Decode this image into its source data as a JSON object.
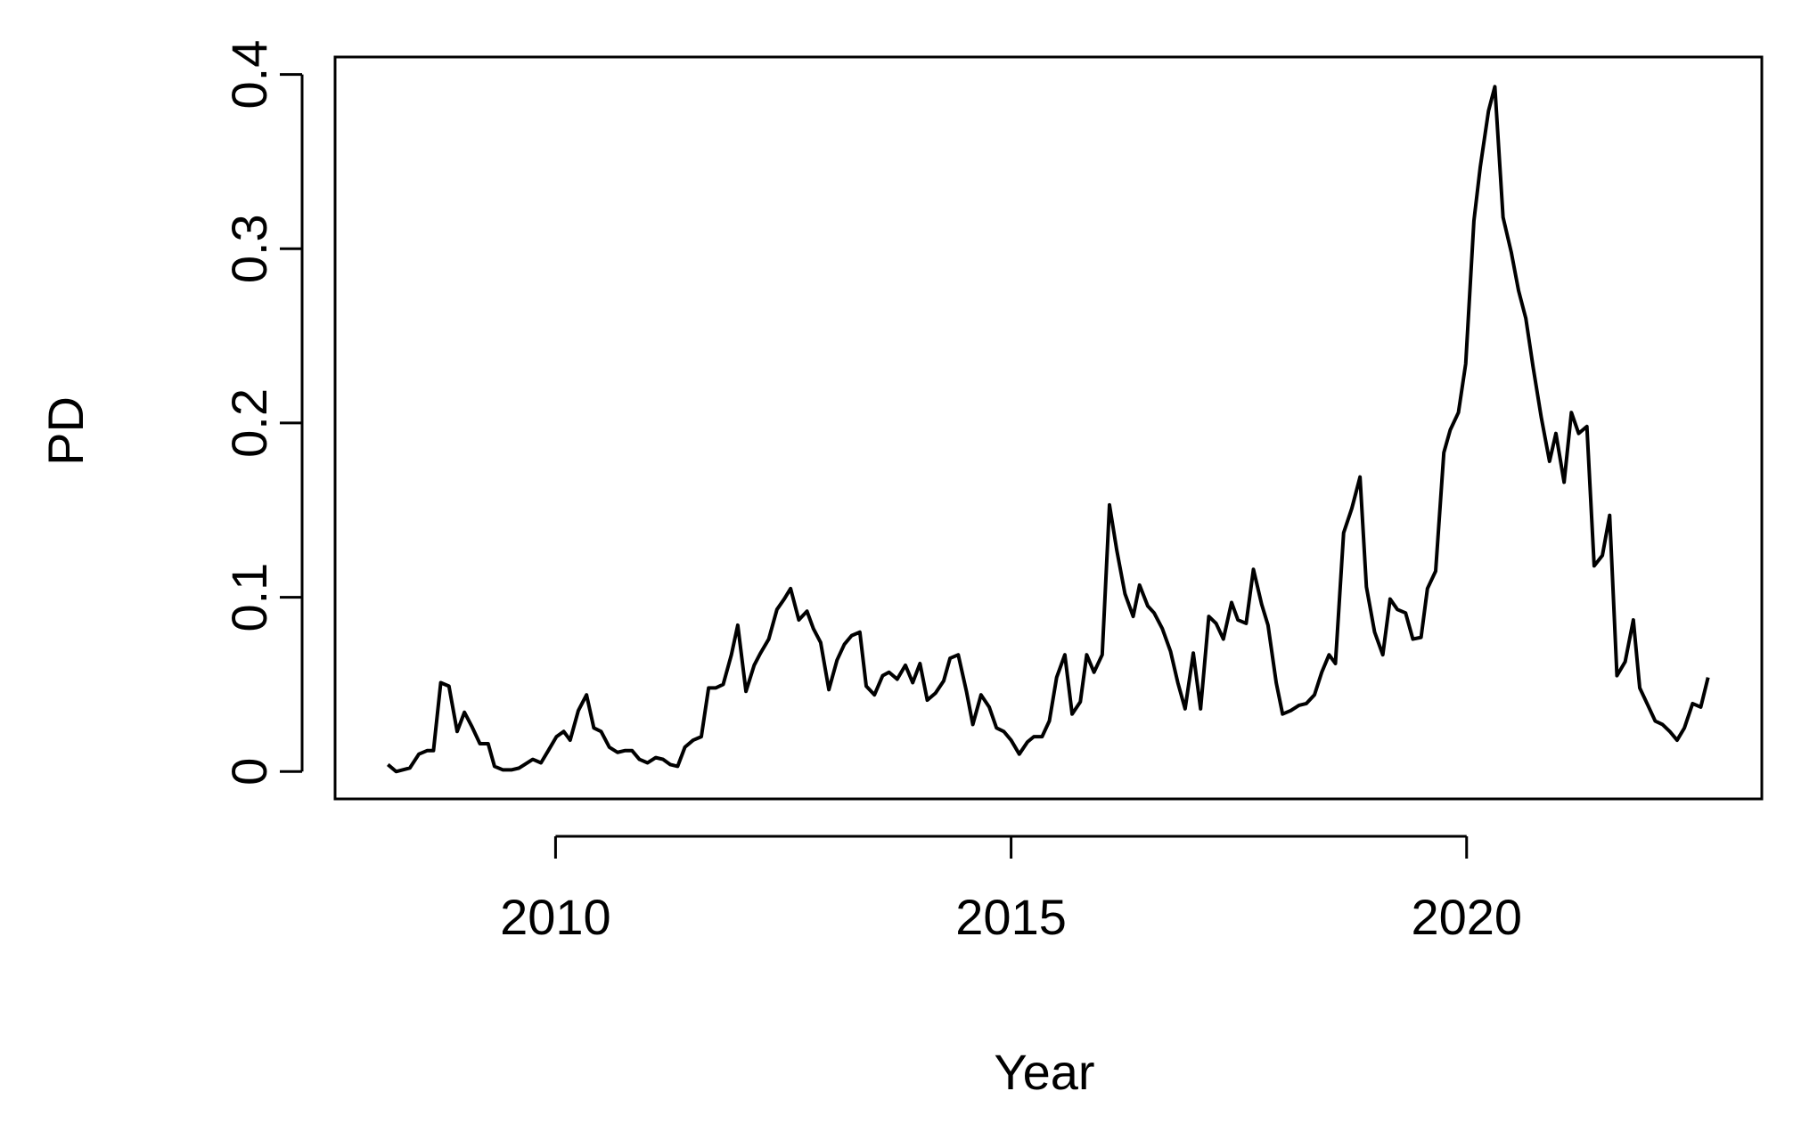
{
  "chart_data": {
    "type": "line",
    "x_label": "Year",
    "y_label": "PD",
    "color": "#000000",
    "x": [
      2008.16,
      2008.25,
      2008.4,
      2008.5,
      2008.59,
      2008.66,
      2008.74,
      2008.83,
      2008.92,
      2009.0,
      2009.08,
      2009.17,
      2009.26,
      2009.33,
      2009.42,
      2009.52,
      2009.6,
      2009.66,
      2009.75,
      2009.84,
      2009.92,
      2010.01,
      2010.09,
      2010.16,
      2010.25,
      2010.34,
      2010.42,
      2010.5,
      2010.59,
      2010.68,
      2010.76,
      2010.84,
      2010.92,
      2011.01,
      2011.1,
      2011.18,
      2011.26,
      2011.34,
      2011.42,
      2011.51,
      2011.6,
      2011.68,
      2011.76,
      2011.84,
      2011.93,
      2012.0,
      2012.09,
      2012.18,
      2012.25,
      2012.34,
      2012.43,
      2012.51,
      2012.58,
      2012.67,
      2012.76,
      2012.83,
      2012.91,
      2013.0,
      2013.09,
      2013.17,
      2013.25,
      2013.34,
      2013.41,
      2013.5,
      2013.59,
      2013.66,
      2013.75,
      2013.84,
      2013.92,
      2014.0,
      2014.08,
      2014.17,
      2014.26,
      2014.33,
      2014.42,
      2014.51,
      2014.58,
      2014.67,
      2014.76,
      2014.84,
      2014.92,
      2015.0,
      2015.09,
      2015.18,
      2015.25,
      2015.34,
      2015.42,
      2015.5,
      2015.59,
      2015.67,
      2015.76,
      2015.83,
      2015.91,
      2016.0,
      2016.08,
      2016.16,
      2016.25,
      2016.34,
      2016.41,
      2016.5,
      2016.57,
      2016.66,
      2016.75,
      2016.83,
      2016.91,
      2017.0,
      2017.08,
      2017.17,
      2017.25,
      2017.33,
      2017.42,
      2017.49,
      2017.58,
      2017.66,
      2017.75,
      2017.82,
      2017.91,
      2017.98,
      2018.07,
      2018.16,
      2018.24,
      2018.33,
      2018.41,
      2018.49,
      2018.56,
      2018.65,
      2018.74,
      2018.83,
      2018.9,
      2018.99,
      2019.08,
      2019.16,
      2019.24,
      2019.33,
      2019.41,
      2019.5,
      2019.57,
      2019.66,
      2019.75,
      2019.82,
      2019.91,
      2019.99,
      2020.08,
      2020.15,
      2020.24,
      2020.31,
      2020.4,
      2020.49,
      2020.57,
      2020.65,
      2020.73,
      2020.82,
      2020.91,
      2020.98,
      2021.07,
      2021.15,
      2021.23,
      2021.32,
      2021.4,
      2021.49,
      2021.57,
      2021.65,
      2021.74,
      2021.83,
      2021.9,
      2021.99,
      2022.07,
      2022.15,
      2022.23,
      2022.31,
      2022.39,
      2022.48,
      2022.57,
      2022.65
    ],
    "values": [
      0.004,
      0.0,
      0.002,
      0.01,
      0.012,
      0.012,
      0.051,
      0.049,
      0.023,
      0.034,
      0.026,
      0.016,
      0.016,
      0.003,
      0.001,
      0.001,
      0.002,
      0.004,
      0.007,
      0.005,
      0.012,
      0.02,
      0.023,
      0.018,
      0.035,
      0.044,
      0.025,
      0.023,
      0.014,
      0.011,
      0.012,
      0.012,
      0.007,
      0.005,
      0.008,
      0.007,
      0.004,
      0.003,
      0.014,
      0.018,
      0.02,
      0.048,
      0.048,
      0.05,
      0.067,
      0.084,
      0.046,
      0.061,
      0.068,
      0.076,
      0.093,
      0.099,
      0.105,
      0.087,
      0.092,
      0.082,
      0.074,
      0.047,
      0.064,
      0.073,
      0.078,
      0.08,
      0.049,
      0.044,
      0.055,
      0.057,
      0.053,
      0.061,
      0.051,
      0.062,
      0.041,
      0.045,
      0.052,
      0.065,
      0.067,
      0.046,
      0.027,
      0.044,
      0.037,
      0.025,
      0.023,
      0.018,
      0.01,
      0.017,
      0.02,
      0.02,
      0.029,
      0.054,
      0.067,
      0.033,
      0.04,
      0.067,
      0.057,
      0.067,
      0.153,
      0.127,
      0.102,
      0.089,
      0.107,
      0.095,
      0.091,
      0.082,
      0.069,
      0.051,
      0.036,
      0.068,
      0.036,
      0.089,
      0.085,
      0.076,
      0.097,
      0.087,
      0.085,
      0.116,
      0.096,
      0.084,
      0.051,
      0.033,
      0.035,
      0.038,
      0.039,
      0.044,
      0.057,
      0.067,
      0.062,
      0.137,
      0.151,
      0.169,
      0.106,
      0.08,
      0.067,
      0.099,
      0.093,
      0.091,
      0.076,
      0.077,
      0.105,
      0.115,
      0.183,
      0.196,
      0.206,
      0.234,
      0.316,
      0.347,
      0.379,
      0.393,
      0.318,
      0.298,
      0.276,
      0.26,
      0.232,
      0.203,
      0.178,
      0.194,
      0.166,
      0.206,
      0.194,
      0.198,
      0.118,
      0.124,
      0.147,
      0.055,
      0.063,
      0.087,
      0.048,
      0.038,
      0.029,
      0.027,
      0.023,
      0.018,
      0.025,
      0.039,
      0.037,
      0.054
    ],
    "xlim": [
      2007.58,
      2023.24
    ],
    "ylim": [
      -0.0157,
      0.41
    ],
    "xticks": [
      2010,
      2015,
      2020
    ],
    "yticks": [
      0.0,
      0.1,
      0.2,
      0.3,
      0.4
    ]
  }
}
